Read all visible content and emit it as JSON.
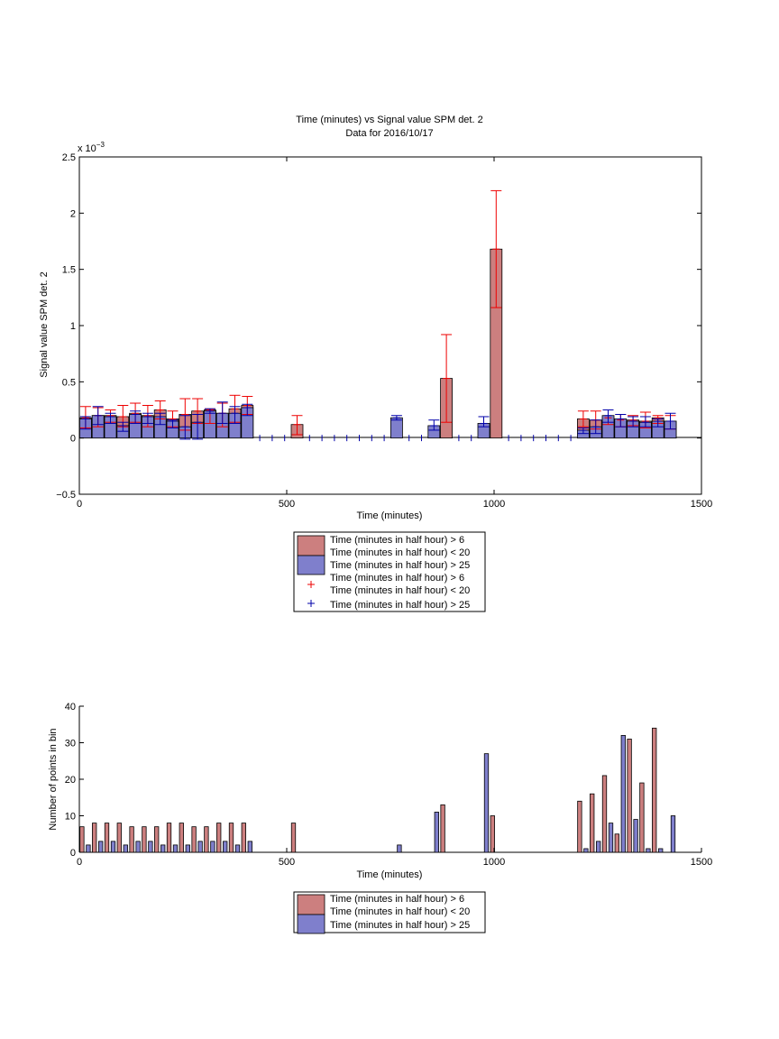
{
  "colors": {
    "red_bar": "#cc7f7f",
    "blue_bar": "#7f7fcc",
    "red_marker": "#ee0000",
    "blue_marker": "#0000aa"
  },
  "chart_data": [
    {
      "type": "bar",
      "title": "Time (minutes) vs Signal value SPM det. 2",
      "subtitle": "Data for 2016/10/17",
      "xlabel": "Time (minutes)",
      "ylabel": "Signal value SPM det. 2",
      "exponent_label": "x 10",
      "exponent_power": "−3",
      "xlim": [
        0,
        1500
      ],
      "ylim": [
        -0.5,
        2.5
      ],
      "xticks": [
        0,
        500,
        1000,
        1500
      ],
      "xtick_labels": [
        "0",
        "500",
        "1000",
        "1500"
      ],
      "yticks": [
        -0.5,
        0,
        0.5,
        1,
        1.5,
        2,
        2.5
      ],
      "ytick_labels": [
        "−0.5",
        "0",
        "0.5",
        "1",
        "1.5",
        "2",
        "2.5"
      ],
      "y_scale_note": "values in units of 1e-3",
      "grid": false,
      "legend_position": "below",
      "legend": [
        "Time (minutes in half hour) > 6",
        "Time (minutes in half hour) < 20",
        "Time (minutes in half hour) > 25",
        "Time (minutes in half hour) > 6",
        "Time (minutes in half hour) < 20",
        "Time (minutes in half hour) > 25"
      ],
      "series": [
        {
          "name": "Time (minutes in half hour) > 6 Time (minutes in half hour) < 20",
          "x": [
            15,
            45,
            75,
            105,
            135,
            165,
            195,
            225,
            255,
            285,
            315,
            345,
            375,
            405,
            525,
            885,
            1005,
            1215,
            1245,
            1275,
            1305,
            1335,
            1365,
            1395,
            1425
          ],
          "values": [
            0.18,
            0.2,
            0.2,
            0.19,
            0.22,
            0.2,
            0.25,
            0.17,
            0.21,
            0.24,
            0.25,
            0.22,
            0.26,
            0.29,
            0.12,
            0.53,
            1.68,
            0.17,
            0.16,
            0.18,
            0.16,
            0.16,
            0.15,
            0.18,
            0.15
          ],
          "err_low": [
            0.09,
            0.1,
            0.14,
            0.1,
            0.14,
            0.1,
            0.17,
            0.1,
            0.07,
            0.13,
            0.13,
            0.1,
            0.14,
            0.21,
            0.03,
            0.14,
            1.16,
            0.1,
            0.08,
            0.12,
            0.1,
            0.11,
            0.09,
            0.13,
            0.08
          ],
          "err_high": [
            0.28,
            0.27,
            0.25,
            0.29,
            0.31,
            0.29,
            0.33,
            0.24,
            0.35,
            0.35,
            0.26,
            0.31,
            0.38,
            0.37,
            0.2,
            0.92,
            2.2,
            0.24,
            0.24,
            0.25,
            0.21,
            0.2,
            0.23,
            0.2,
            0.2
          ]
        },
        {
          "name": "Time (minutes in half hour) > 25",
          "x": [
            15,
            45,
            75,
            105,
            135,
            165,
            195,
            225,
            255,
            285,
            315,
            345,
            375,
            405,
            765,
            855,
            975,
            1215,
            1245,
            1275,
            1305,
            1335,
            1365,
            1395,
            1425
          ],
          "values": [
            0.17,
            0.2,
            0.19,
            0.11,
            0.21,
            0.19,
            0.19,
            0.15,
            0.1,
            0.14,
            0.24,
            0.22,
            0.22,
            0.27,
            0.18,
            0.11,
            0.13,
            0.07,
            0.1,
            0.2,
            0.17,
            0.15,
            0.14,
            0.15,
            0.15
          ],
          "err_low": [
            0.08,
            0.12,
            0.13,
            0.06,
            0.13,
            0.13,
            0.12,
            0.09,
            -0.01,
            -0.01,
            0.22,
            0.13,
            0.13,
            0.2,
            0.16,
            0.07,
            0.1,
            0.04,
            0.04,
            0.14,
            0.1,
            0.1,
            0.1,
            0.1,
            0.08
          ],
          "err_high": [
            0.19,
            0.28,
            0.22,
            0.14,
            0.24,
            0.22,
            0.22,
            0.16,
            0.2,
            0.21,
            0.26,
            0.32,
            0.28,
            0.3,
            0.2,
            0.16,
            0.19,
            0.09,
            0.16,
            0.25,
            0.21,
            0.19,
            0.19,
            0.17,
            0.22
          ]
        }
      ],
      "zero_markers_x": [
        435,
        465,
        495,
        555,
        585,
        615,
        645,
        675,
        705,
        735,
        795,
        825,
        915,
        945,
        1035,
        1065,
        1095,
        1125,
        1155,
        1185
      ]
    },
    {
      "type": "bar",
      "xlabel": "Time (minutes)",
      "ylabel": "Number of points in bin",
      "xlim": [
        0,
        1500
      ],
      "ylim": [
        0,
        40
      ],
      "xticks": [
        0,
        500,
        1000,
        1500
      ],
      "xtick_labels": [
        "0",
        "500",
        "1000",
        "1500"
      ],
      "yticks": [
        0,
        10,
        20,
        30,
        40
      ],
      "ytick_labels": [
        "0",
        "10",
        "20",
        "30",
        "40"
      ],
      "grid": false,
      "legend_position": "below",
      "legend": [
        "Time (minutes in half hour) > 6",
        "Time (minutes in half hour) < 20",
        "Time (minutes in half hour) > 25"
      ],
      "series": [
        {
          "name": "Time (minutes in half hour) > 6 Time (minutes in half hour) < 20",
          "x": [
            15,
            45,
            75,
            105,
            135,
            165,
            195,
            225,
            255,
            285,
            315,
            345,
            375,
            405,
            525,
            885,
            1005,
            1215,
            1245,
            1275,
            1305,
            1335,
            1365,
            1395,
            1425
          ],
          "values": [
            7,
            8,
            8,
            8,
            7,
            7,
            7,
            8,
            8,
            7,
            7,
            8,
            8,
            8,
            8,
            13,
            10,
            14,
            16,
            21,
            5,
            31,
            19,
            34,
            0
          ]
        },
        {
          "name": "Time (minutes in half hour) > 25",
          "x": [
            15,
            45,
            75,
            105,
            135,
            165,
            195,
            225,
            255,
            285,
            315,
            345,
            375,
            405,
            765,
            855,
            975,
            1215,
            1245,
            1275,
            1305,
            1335,
            1365,
            1395,
            1425
          ],
          "values": [
            2,
            3,
            3,
            2,
            3,
            3,
            2,
            2,
            2,
            3,
            3,
            3,
            2,
            3,
            2,
            11,
            27,
            1,
            3,
            8,
            32,
            9,
            1,
            1,
            10
          ]
        }
      ]
    }
  ]
}
